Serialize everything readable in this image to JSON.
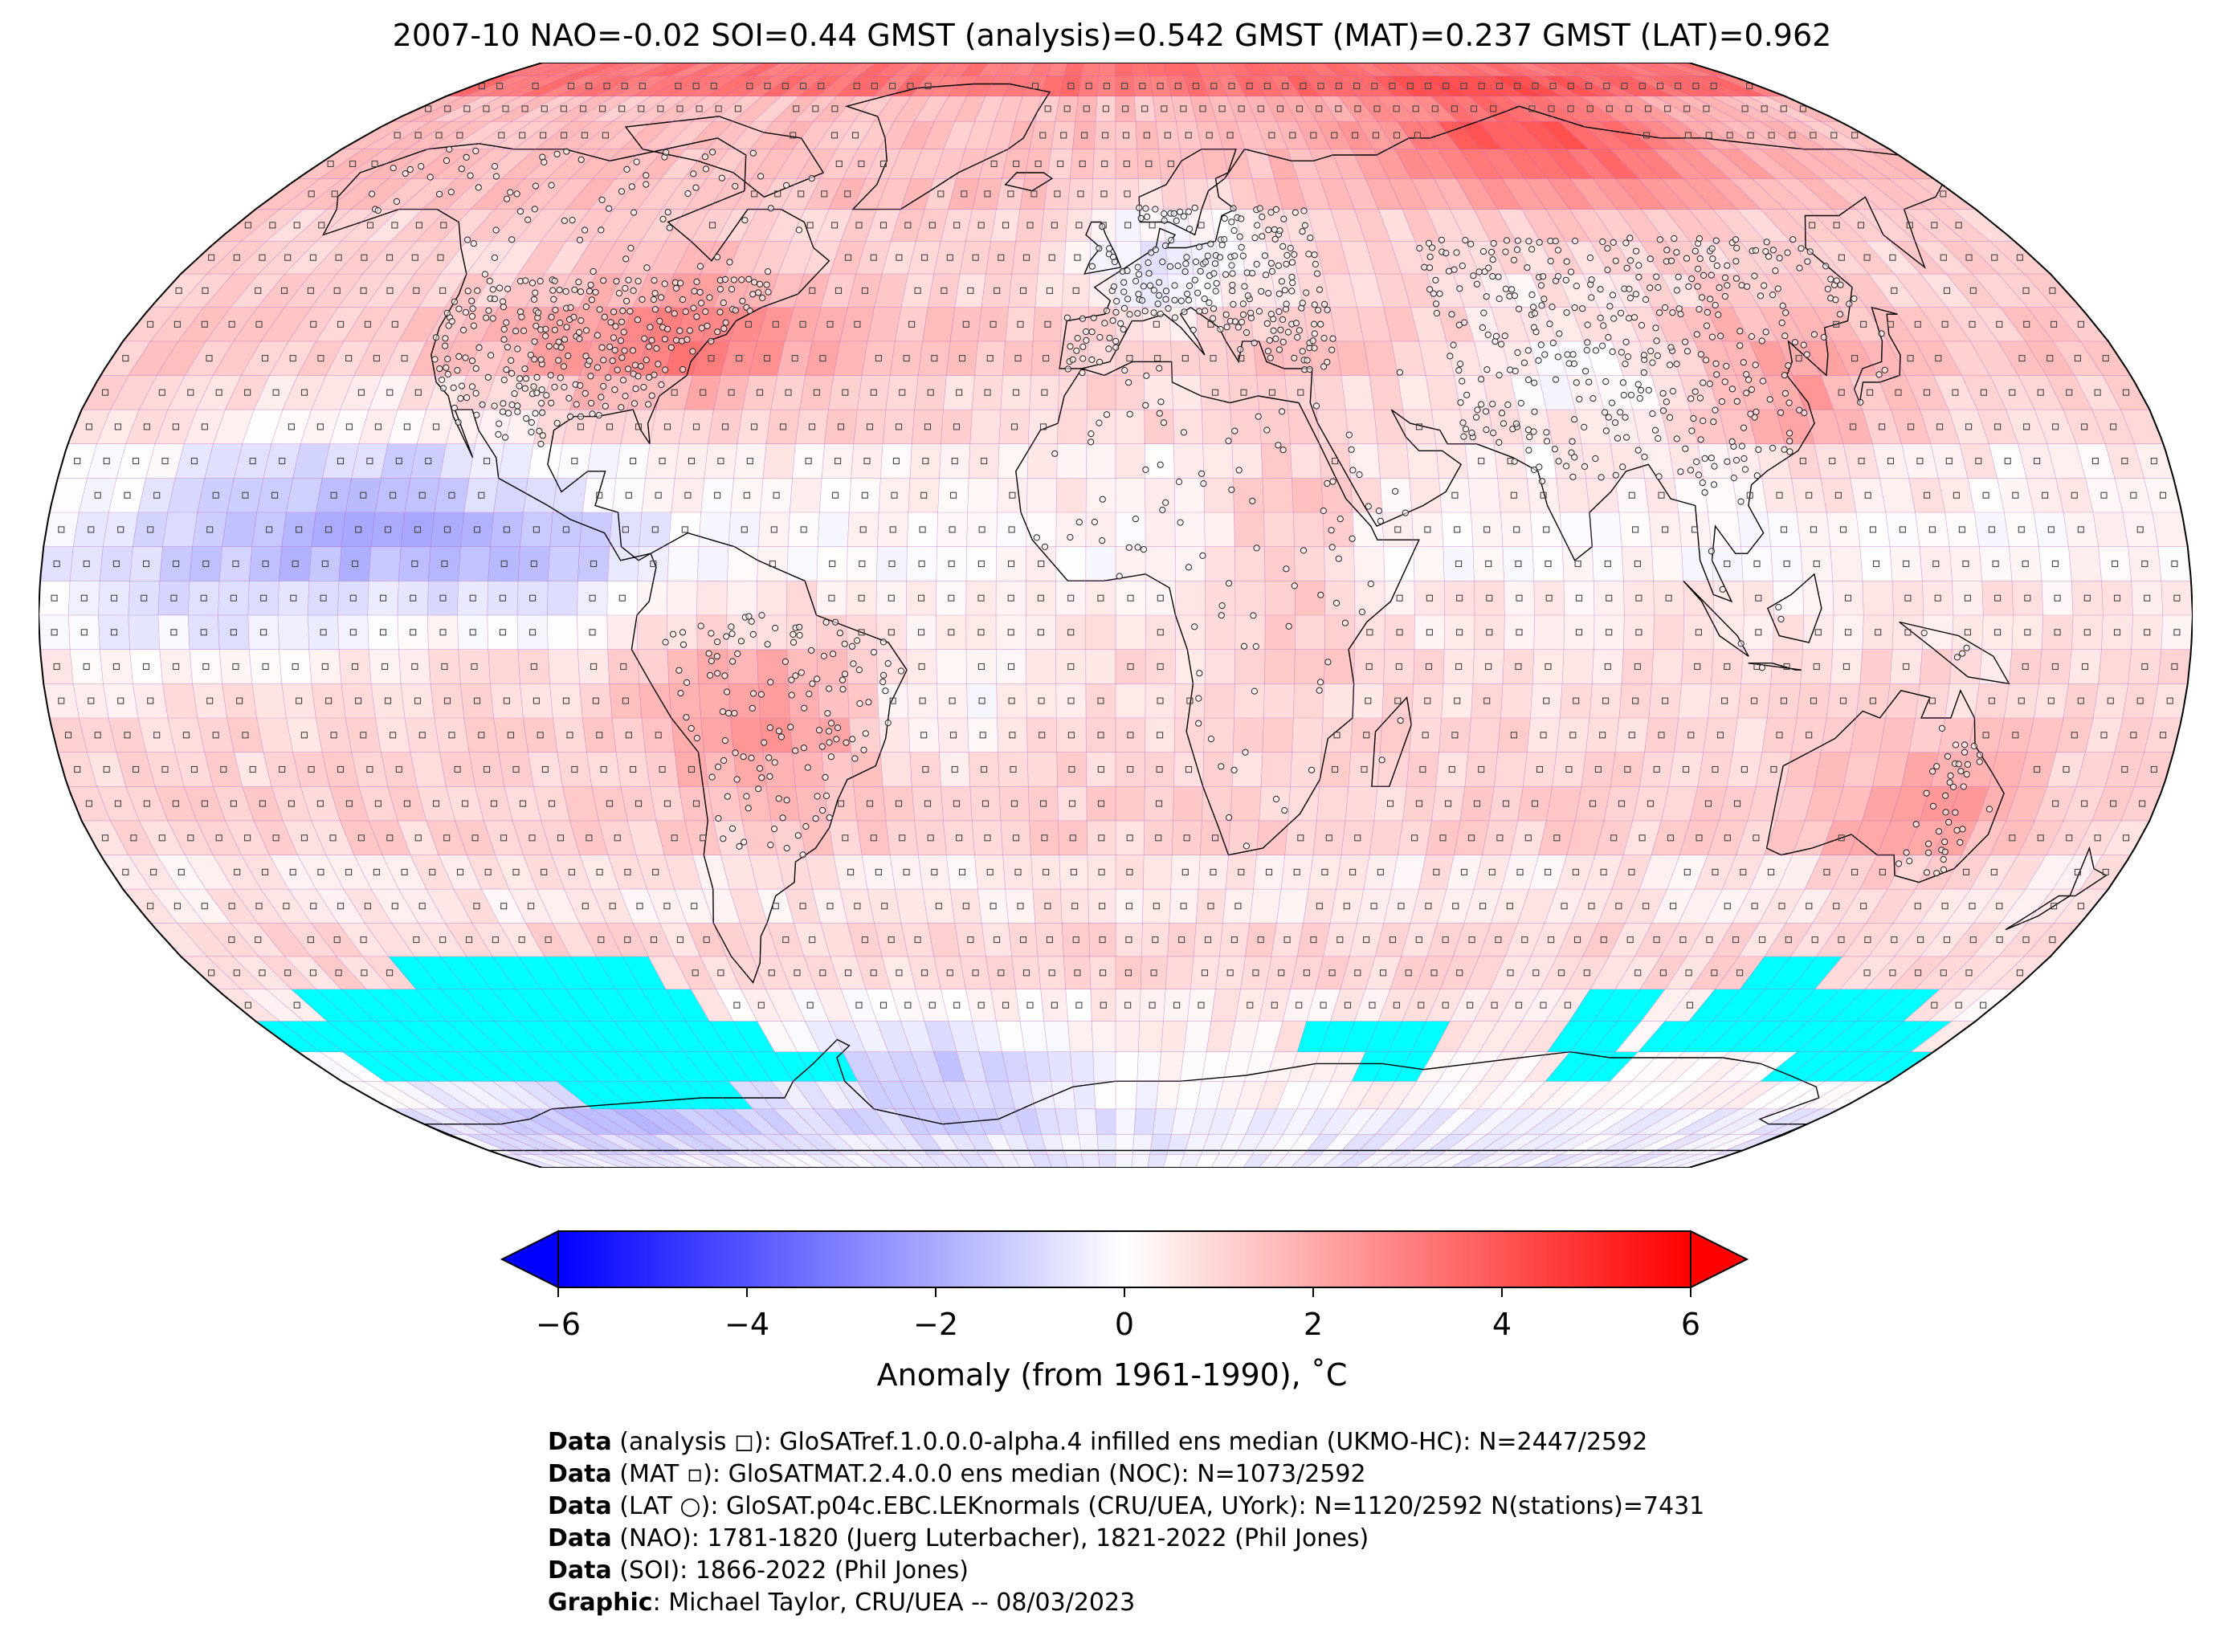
{
  "title": "2007-10 NAO=-0.02 SOI=0.44 GMST (analysis)=0.542 GMST (MAT)=0.237 GMST (LAT)=0.962",
  "colors": {
    "warm": "#ff1a1a",
    "warm_light": "#fbbcbc",
    "neutral": "#ffffff",
    "cool_light": "#d6d6fb",
    "cool": "#1a1aff",
    "missing_data": "#00ffff",
    "coastline": "#000000",
    "gridline": "#b060c0"
  },
  "map": {
    "projection": "Robinson",
    "grid_cells": "5x5 degree",
    "markers": [
      "analysis-square",
      "mat-square",
      "lat-circle"
    ]
  },
  "colorbar": {
    "ticks": [
      "−6",
      "−4",
      "−2",
      "0",
      "2",
      "4",
      "6"
    ],
    "range": [
      -6,
      6
    ],
    "extend": "both",
    "label": "Anomaly (from 1961-1990), ˚C"
  },
  "captions": [
    {
      "key": "Data",
      "text": " (analysis ◻): GloSATref.1.0.0.0-alpha.4 infilled ens median (UKMO-HC): N=2447/2592"
    },
    {
      "key": "Data",
      "text": " (MAT ▫): GloSATMAT.2.4.0.0 ens median (NOC): N=1073/2592"
    },
    {
      "key": "Data",
      "text": " (LAT ○): GloSAT.p04c.EBC.LEKnormals (CRU/UEA, UYork): N=1120/2592 N(stations)=7431"
    },
    {
      "key": "Data",
      "text": " (NAO): 1781-1820 (Juerg Luterbacher), 1821-2022 (Phil Jones)"
    },
    {
      "key": "Data",
      "text": " (SOI): 1866-2022 (Phil Jones)"
    },
    {
      "key": "Graphic",
      "text": ": Michael Taylor, CRU/UEA -- 08/03/2023"
    }
  ]
}
